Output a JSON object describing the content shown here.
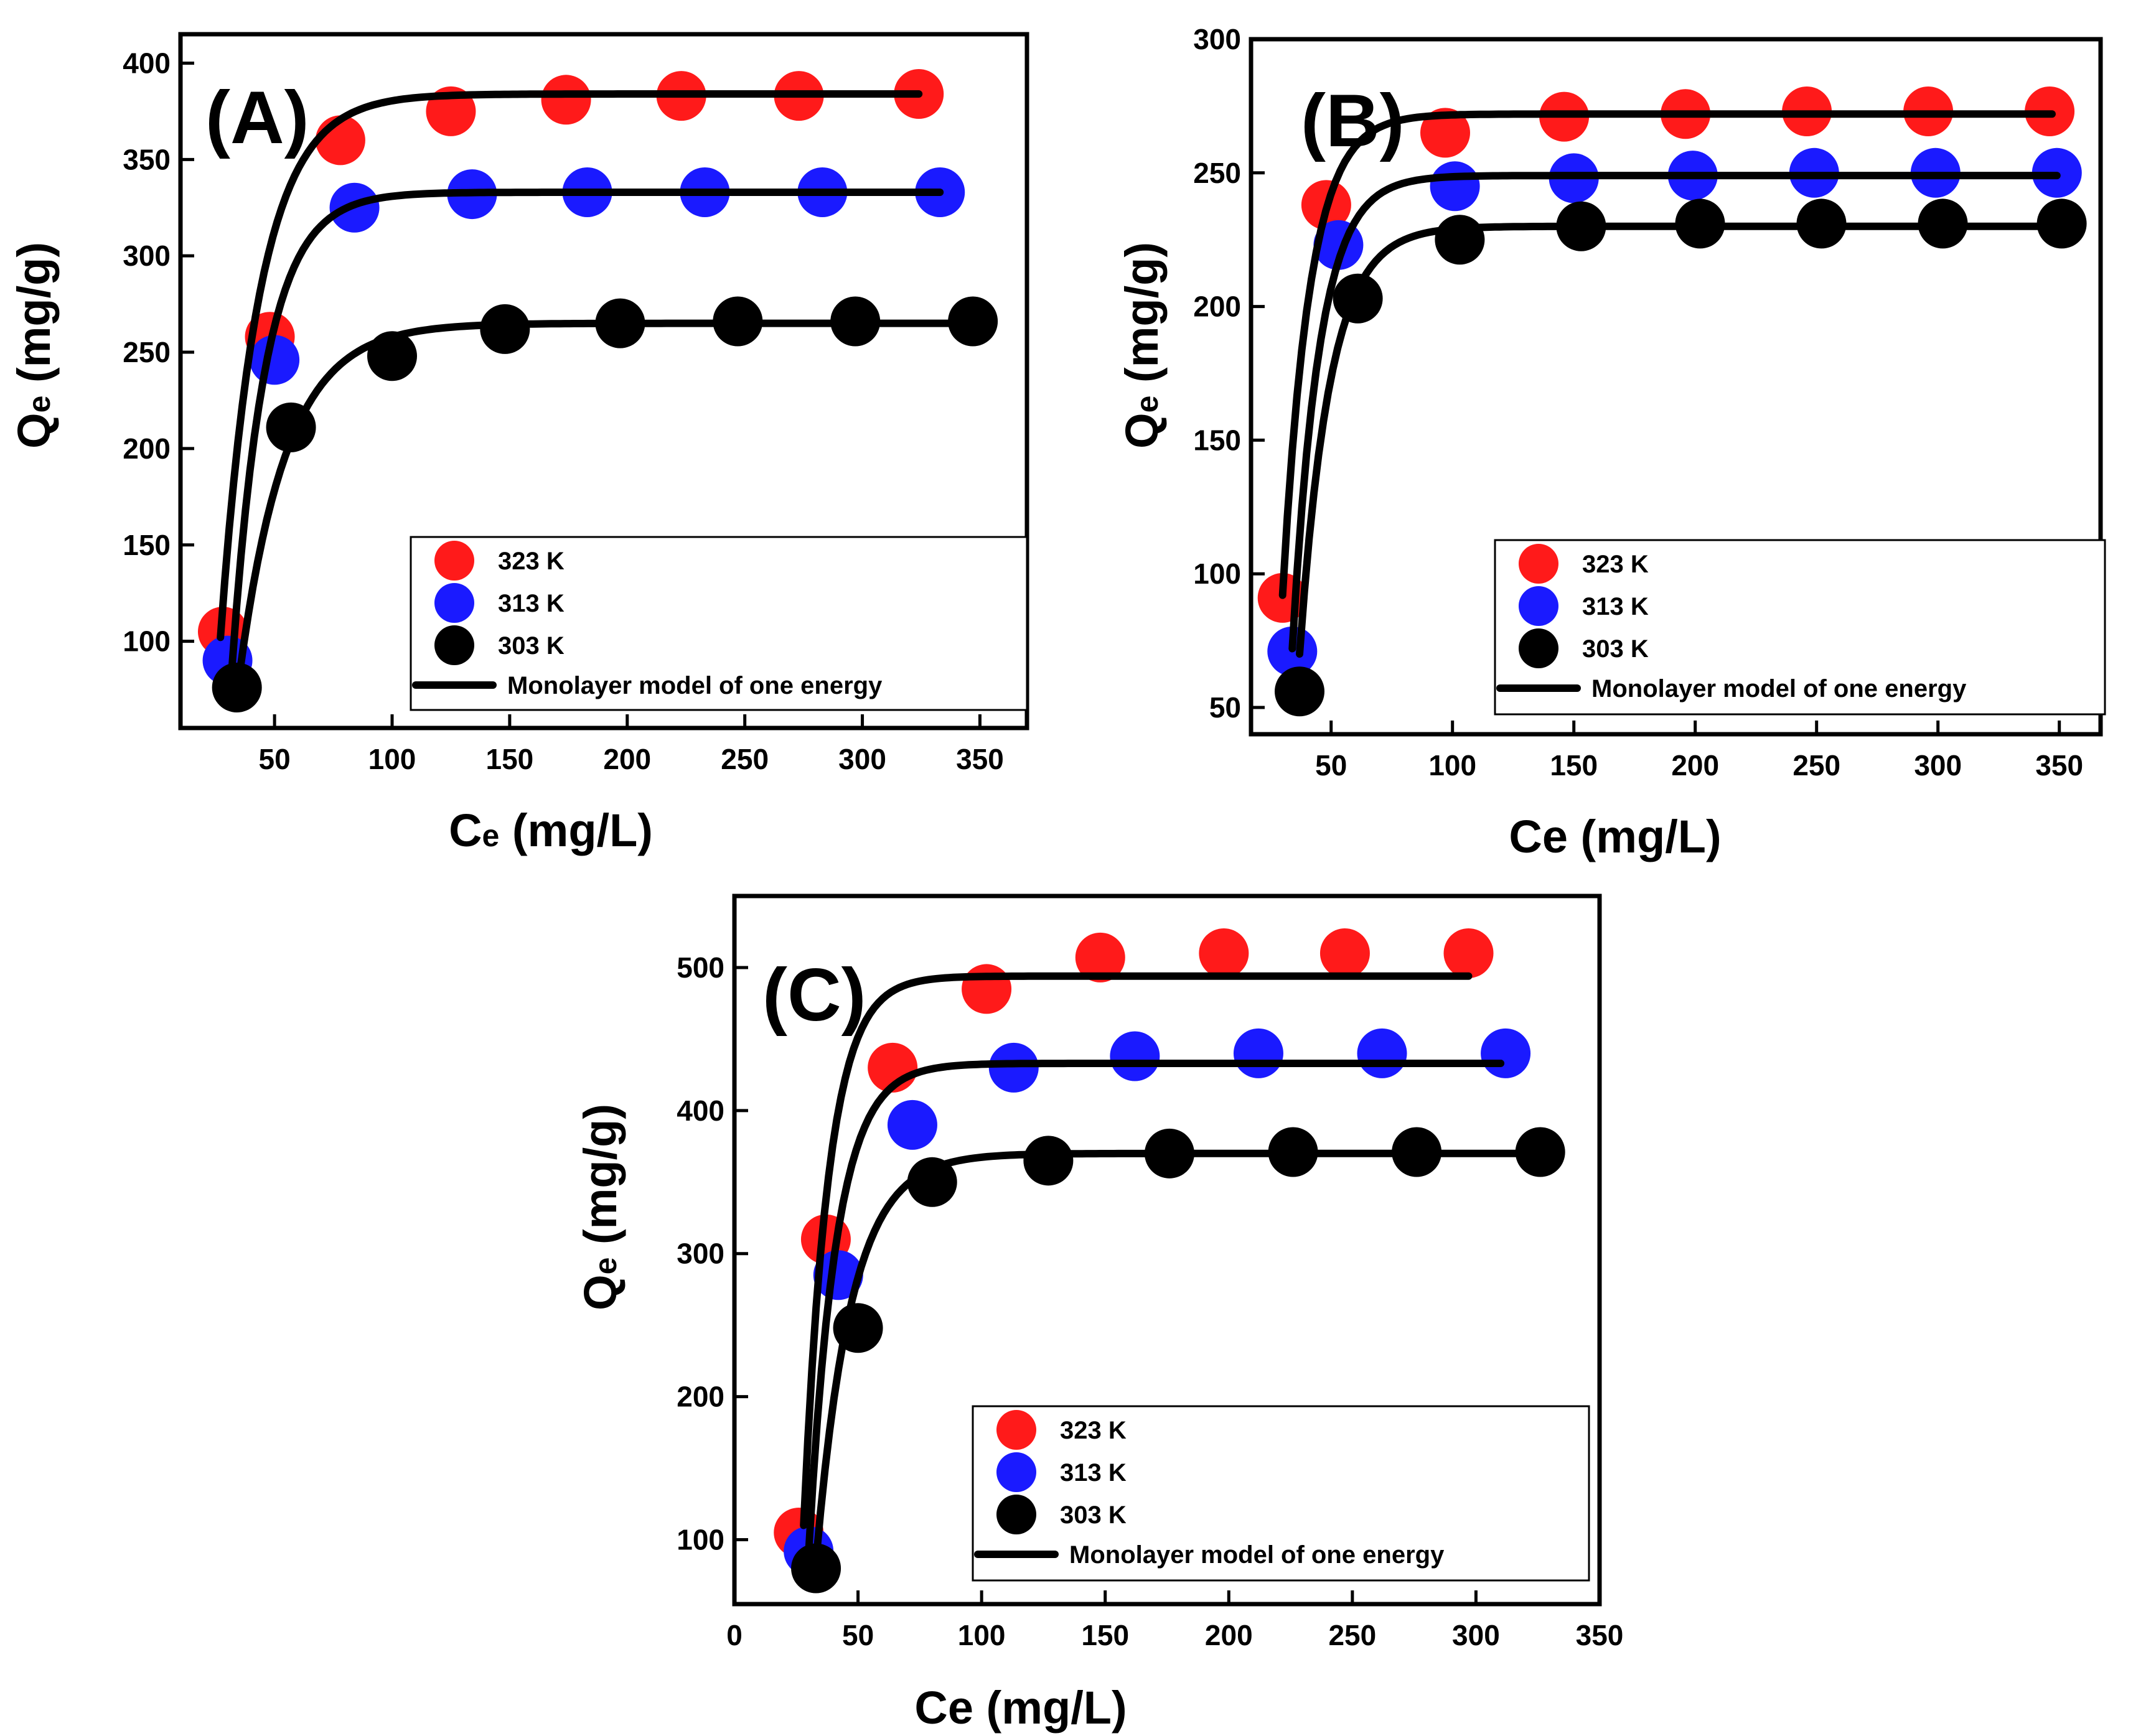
{
  "colors": {
    "323 K": "#ff1a1a",
    "313 K": "#1a1aff",
    "303 K": "#000000",
    "fit": "#000000"
  },
  "chart_data": [
    {
      "type": "scatter",
      "panel_label": "(A)",
      "xlabel_main": "C",
      "xlabel_sub": "e",
      "xlabel_rest": " (mg/L)",
      "ylabel_main": "Q",
      "ylabel_sub": "e",
      "ylabel_rest": " (mg/g)",
      "xlim": [
        10,
        370
      ],
      "ylim": [
        55,
        415
      ],
      "xticks": [
        50,
        100,
        150,
        200,
        250,
        300,
        350
      ],
      "yticks": [
        100,
        150,
        200,
        250,
        300,
        350,
        400
      ],
      "legend_position": "bottom-right",
      "series": [
        {
          "name": "323 K",
          "x": [
            28,
            48,
            78,
            125,
            174,
            223,
            273,
            324
          ],
          "y": [
            105,
            258,
            360,
            375,
            381,
            383,
            383,
            384
          ]
        },
        {
          "name": "313 K",
          "x": [
            30,
            50,
            84,
            134,
            183,
            233,
            283,
            333
          ],
          "y": [
            90,
            246,
            325,
            332,
            333,
            333,
            333,
            333
          ]
        },
        {
          "name": "303 K",
          "x": [
            34,
            57,
            100,
            148,
            197,
            247,
            297,
            347
          ],
          "y": [
            76,
            211,
            248,
            262,
            265,
            266,
            266,
            266
          ]
        }
      ],
      "fit_label": "Monolayer model of one energy",
      "fits": [
        {
          "series": "323 K",
          "qmax": 384,
          "k": 0.06,
          "x0": 27,
          "q0": 102,
          "xend": 324
        },
        {
          "series": "313 K",
          "qmax": 333,
          "k": 0.07,
          "x0": 32,
          "q0": 88,
          "xend": 333
        },
        {
          "series": "303 K",
          "qmax": 265,
          "k": 0.05,
          "x0": 35,
          "q0": 82,
          "xend": 347
        }
      ]
    },
    {
      "type": "scatter",
      "panel_label": "(B)",
      "xlabel_main": "Ce",
      "xlabel_sub": "",
      "xlabel_rest": " (mg/L)",
      "ylabel_main": "Q",
      "ylabel_sub": "e",
      "ylabel_rest": " (mg/g)",
      "xlim": [
        17,
        367
      ],
      "ylim": [
        40,
        300
      ],
      "xticks": [
        50,
        100,
        150,
        200,
        250,
        300,
        350
      ],
      "yticks": [
        50,
        100,
        150,
        200,
        250,
        300
      ],
      "legend_position": "bottom-right",
      "series": [
        {
          "name": "323 K",
          "x": [
            30,
            48,
            97,
            146,
            196,
            246,
            296,
            346
          ],
          "y": [
            91,
            238,
            265,
            271,
            272,
            273,
            273,
            273
          ]
        },
        {
          "name": "313 K",
          "x": [
            34,
            53,
            101,
            150,
            199,
            249,
            299,
            349
          ],
          "y": [
            71,
            223,
            245,
            248,
            249,
            250,
            250,
            250
          ]
        },
        {
          "name": "303 K",
          "x": [
            37,
            61,
            103,
            153,
            202,
            252,
            302,
            351
          ],
          "y": [
            56,
            203,
            225,
            230,
            231,
            231,
            231,
            231
          ]
        }
      ],
      "fit_label": "Monolayer model of one energy",
      "fits": [
        {
          "series": "323 K",
          "qmax": 272,
          "k": 0.09,
          "x0": 30,
          "q0": 92,
          "xend": 347
        },
        {
          "series": "313 K",
          "qmax": 249,
          "k": 0.09,
          "x0": 34,
          "q0": 72,
          "xend": 349
        },
        {
          "series": "303 K",
          "qmax": 230,
          "k": 0.08,
          "x0": 37,
          "q0": 70,
          "xend": 351
        }
      ]
    },
    {
      "type": "scatter",
      "panel_label": "(C)",
      "xlabel_main": "Ce",
      "xlabel_sub": "",
      "xlabel_rest": " (mg/L)",
      "ylabel_main": "Q",
      "ylabel_sub": "e",
      "ylabel_rest": " (mg/g)",
      "xlim": [
        0,
        350
      ],
      "ylim": [
        55,
        550
      ],
      "xticks": [
        0,
        50,
        100,
        150,
        200,
        250,
        300,
        350
      ],
      "yticks": [
        100,
        200,
        300,
        400,
        500
      ],
      "legend_position": "bottom-right",
      "series": [
        {
          "name": "323 K",
          "x": [
            26,
            37,
            64,
            102,
            148,
            198,
            247,
            297
          ],
          "y": [
            105,
            310,
            430,
            485,
            507,
            510,
            510,
            510
          ]
        },
        {
          "name": "313 K",
          "x": [
            30,
            42,
            72,
            113,
            162,
            212,
            262,
            312
          ],
          "y": [
            92,
            285,
            390,
            430,
            438,
            440,
            440,
            440
          ]
        },
        {
          "name": "303 K",
          "x": [
            33,
            50,
            80,
            127,
            176,
            226,
            276,
            326
          ],
          "y": [
            80,
            248,
            350,
            365,
            370,
            371,
            371,
            371
          ]
        }
      ],
      "fit_label": "Monolayer model of one energy",
      "fits": [
        {
          "series": "323 K",
          "qmax": 494,
          "k": 0.1,
          "x0": 28,
          "q0": 110,
          "xend": 297
        },
        {
          "series": "313 K",
          "qmax": 433,
          "k": 0.09,
          "x0": 30,
          "q0": 90,
          "xend": 310
        },
        {
          "series": "303 K",
          "qmax": 370,
          "k": 0.07,
          "x0": 33,
          "q0": 85,
          "xend": 325
        }
      ]
    }
  ]
}
